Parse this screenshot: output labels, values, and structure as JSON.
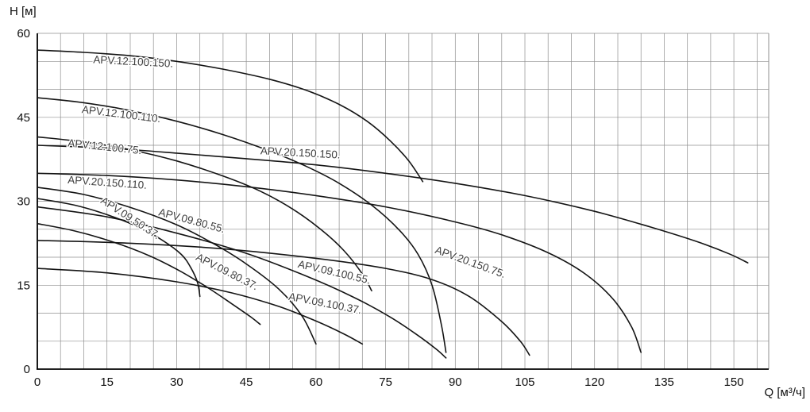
{
  "chart_data": {
    "type": "line",
    "title": "",
    "xlabel": "Q [м³/ч]",
    "ylabel": "H [м]",
    "xlim": [
      0,
      157.5
    ],
    "ylim": [
      0,
      60
    ],
    "x_ticks": [
      0,
      15,
      30,
      45,
      60,
      75,
      90,
      105,
      120,
      135,
      150
    ],
    "y_ticks": [
      0,
      15,
      30,
      45,
      60
    ],
    "grid": {
      "on": true,
      "step": 5
    },
    "legend_position": "inline-labels",
    "colors": {
      "curve": "#141414",
      "grid": "#8f8f8f",
      "axis": "#000000",
      "label": "#3f3f3f",
      "tick": "#101010"
    },
    "series": [
      {
        "name": "APV.12.100.150.",
        "points": [
          [
            0,
            57
          ],
          [
            10,
            56.6
          ],
          [
            20,
            56
          ],
          [
            30,
            55
          ],
          [
            40,
            53.6
          ],
          [
            50,
            51.8
          ],
          [
            58,
            49.8
          ],
          [
            65,
            47.3
          ],
          [
            71,
            44.3
          ],
          [
            76,
            40.8
          ],
          [
            80,
            37.2
          ],
          [
            83,
            33.5
          ]
        ],
        "label": {
          "x": 12,
          "y": 54.7,
          "rotate": 3
        }
      },
      {
        "name": "APV.12.100.110.",
        "points": [
          [
            0,
            48.5
          ],
          [
            10,
            47.6
          ],
          [
            20,
            46.2
          ],
          [
            30,
            44.3
          ],
          [
            40,
            41.9
          ],
          [
            50,
            39
          ],
          [
            58,
            36.2
          ],
          [
            65,
            33.2
          ],
          [
            72,
            29.3
          ],
          [
            78,
            24.8
          ],
          [
            82,
            20.5
          ],
          [
            85,
            15
          ],
          [
            87,
            8
          ],
          [
            88,
            3
          ]
        ],
        "label": {
          "x": 9.5,
          "y": 45.8,
          "rotate": 7
        }
      },
      {
        "name": "APV.12.100.75.",
        "points": [
          [
            0,
            41.5
          ],
          [
            10,
            40.6
          ],
          [
            20,
            39.2
          ],
          [
            30,
            37.2
          ],
          [
            40,
            34.5
          ],
          [
            48,
            31.8
          ],
          [
            55,
            28.6
          ],
          [
            61,
            25
          ],
          [
            66,
            21.2
          ],
          [
            70,
            17
          ],
          [
            72,
            14
          ]
        ],
        "label": {
          "x": 6.5,
          "y": 39.8,
          "rotate": 6
        }
      },
      {
        "name": "APV.20.150.150.",
        "points": [
          [
            0,
            40
          ],
          [
            15,
            39.5
          ],
          [
            30,
            38.6
          ],
          [
            45,
            37.6
          ],
          [
            60,
            36.5
          ],
          [
            75,
            35
          ],
          [
            90,
            33.2
          ],
          [
            105,
            31
          ],
          [
            120,
            28.2
          ],
          [
            132,
            25.4
          ],
          [
            142,
            22.8
          ],
          [
            149,
            20.6
          ],
          [
            153,
            19
          ]
        ],
        "label": {
          "x": 48,
          "y": 38.4,
          "rotate": 3
        }
      },
      {
        "name": "APV.20.150.110.",
        "points": [
          [
            0,
            35
          ],
          [
            15,
            34.6
          ],
          [
            30,
            33.8
          ],
          [
            45,
            32.6
          ],
          [
            60,
            31
          ],
          [
            75,
            29
          ],
          [
            90,
            26.3
          ],
          [
            100,
            24
          ],
          [
            110,
            20.8
          ],
          [
            118,
            17
          ],
          [
            124,
            12.5
          ],
          [
            128,
            7.5
          ],
          [
            130,
            3
          ]
        ],
        "label": {
          "x": 6.5,
          "y": 33.2,
          "rotate": 4
        }
      },
      {
        "name": "APV.09.80.55.",
        "points": [
          [
            0,
            32.5
          ],
          [
            10,
            31.2
          ],
          [
            20,
            28.9
          ],
          [
            30,
            25.8
          ],
          [
            38,
            22.4
          ],
          [
            45,
            18.8
          ],
          [
            52,
            14.3
          ],
          [
            57,
            9.5
          ],
          [
            60,
            4.5
          ]
        ],
        "label": {
          "x": 26,
          "y": 27.5,
          "rotate": 15
        }
      },
      {
        "name": "APV.09.50.37.",
        "points": [
          [
            0,
            30.5
          ],
          [
            8,
            29.3
          ],
          [
            15,
            27.6
          ],
          [
            22,
            25.3
          ],
          [
            27,
            23
          ],
          [
            31,
            20.5
          ],
          [
            33,
            18.2
          ],
          [
            34.5,
            15.5
          ],
          [
            35,
            13
          ]
        ],
        "label": {
          "x": 13.5,
          "y": 29.8,
          "rotate": 33
        }
      },
      {
        "name": "APV.09.100.55.",
        "points": [
          [
            0,
            29
          ],
          [
            15,
            27.2
          ],
          [
            30,
            24.3
          ],
          [
            45,
            20.7
          ],
          [
            58,
            16.6
          ],
          [
            68,
            12.9
          ],
          [
            76,
            9.3
          ],
          [
            82,
            6
          ],
          [
            86,
            3.5
          ],
          [
            88,
            2
          ]
        ],
        "label": {
          "x": 56,
          "y": 18.2,
          "rotate": 13
        }
      },
      {
        "name": "APV.09.80.37.",
        "points": [
          [
            0,
            26
          ],
          [
            8,
            24.7
          ],
          [
            16,
            22.8
          ],
          [
            24,
            20.3
          ],
          [
            31,
            17.4
          ],
          [
            37,
            14.4
          ],
          [
            42,
            11.6
          ],
          [
            46,
            9.3
          ],
          [
            48,
            8
          ]
        ],
        "label": {
          "x": 34,
          "y": 19.6,
          "rotate": 27
        }
      },
      {
        "name": "APV.20.150.75.",
        "points": [
          [
            0,
            23
          ],
          [
            20,
            22.5
          ],
          [
            40,
            21.5
          ],
          [
            60,
            19.8
          ],
          [
            75,
            18
          ],
          [
            85,
            16
          ],
          [
            93,
            13
          ],
          [
            100,
            8.5
          ],
          [
            104,
            5
          ],
          [
            106,
            2.5
          ]
        ],
        "label": {
          "x": 85.5,
          "y": 20.8,
          "rotate": 20
        }
      },
      {
        "name": "APV.09.100.37.",
        "points": [
          [
            0,
            18
          ],
          [
            15,
            17.2
          ],
          [
            30,
            15.6
          ],
          [
            42,
            13.6
          ],
          [
            52,
            11.2
          ],
          [
            60,
            8.6
          ],
          [
            66,
            6.3
          ],
          [
            70,
            4.5
          ]
        ],
        "label": {
          "x": 54,
          "y": 12.4,
          "rotate": 11
        }
      }
    ]
  }
}
